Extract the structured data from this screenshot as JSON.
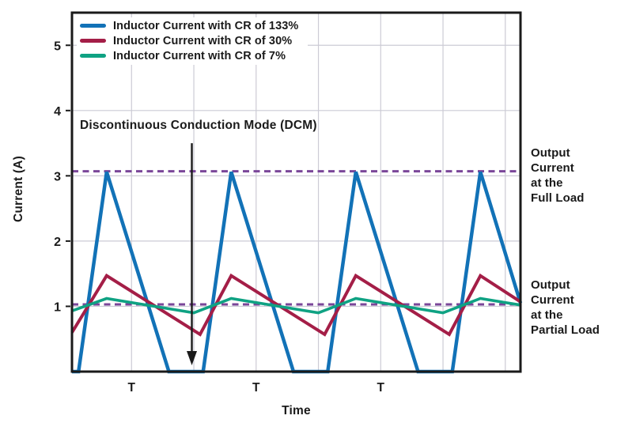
{
  "figure": {
    "background": "#ffffff",
    "text_color": "#1a1a1a"
  },
  "legend": {
    "items": [
      {
        "label": "Inductor Current with CR of 133%",
        "color": "#1272B7",
        "slug": "cr-133"
      },
      {
        "label": "Inductor Current with CR of 30%",
        "color": "#A41E47",
        "slug": "cr-30"
      },
      {
        "label": "Inductor Current with CR of 7%",
        "color": "#0FA283",
        "slug": "cr-7"
      }
    ]
  },
  "labels": {
    "full_load": "Output\nCurrent\nat the\nFull Load",
    "partial_load": "Output\nCurrent\nat the\nPartial Load"
  },
  "chart_data": {
    "type": "line",
    "title": "",
    "xlabel": "Time",
    "ylabel": "Current (A)",
    "ylim": [
      0,
      5.5
    ],
    "y_ticks": [
      1,
      2,
      3,
      4,
      5
    ],
    "x_ticks": [
      {
        "t": 1,
        "label": "T"
      },
      {
        "t": 2,
        "label": "T"
      },
      {
        "t": 3,
        "label": "T"
      }
    ],
    "xlim_t": [
      0.522,
      4.122
    ],
    "grid": {
      "vertical_t": [
        1,
        1.5,
        2,
        2.5,
        3,
        3.5,
        4
      ],
      "horizontal_v": [
        1,
        2,
        3,
        4,
        5
      ],
      "color": "#CCCBD5"
    },
    "reference_lines": [
      {
        "name": "output-current-full-load",
        "value": 3.07,
        "color": "#7A4699",
        "style": "dashed"
      },
      {
        "name": "output-current-partial-load",
        "value": 1.03,
        "color": "#7A4699",
        "style": "dashed"
      }
    ],
    "series": [
      {
        "name": "Inductor Current with CR of 133%",
        "slug": "cr-133",
        "color": "#1272B7",
        "width": 4.5,
        "points": [
          [
            0.522,
            0
          ],
          [
            0.575,
            0
          ],
          [
            0.8,
            3.06
          ],
          [
            1.3,
            0
          ],
          [
            1.575,
            0
          ],
          [
            1.8,
            3.06
          ],
          [
            2.3,
            0
          ],
          [
            2.575,
            0
          ],
          [
            2.8,
            3.06
          ],
          [
            3.3,
            0
          ],
          [
            3.575,
            0
          ],
          [
            3.8,
            3.06
          ],
          [
            4.122,
            1.05
          ]
        ]
      },
      {
        "name": "Inductor Current with CR of 30%",
        "slug": "cr-30",
        "color": "#A41E47",
        "width": 4,
        "points": [
          [
            0.522,
            0.6
          ],
          [
            0.8,
            1.47
          ],
          [
            1.55,
            0.57
          ],
          [
            1.8,
            1.47
          ],
          [
            2.55,
            0.57
          ],
          [
            2.8,
            1.47
          ],
          [
            3.55,
            0.57
          ],
          [
            3.8,
            1.47
          ],
          [
            4.122,
            1.07
          ]
        ]
      },
      {
        "name": "Inductor Current with CR of 7%",
        "slug": "cr-7",
        "color": "#0FA283",
        "width": 3.6,
        "points": [
          [
            0.522,
            0.93
          ],
          [
            0.8,
            1.12
          ],
          [
            1.5,
            0.9
          ],
          [
            1.8,
            1.12
          ],
          [
            2.5,
            0.9
          ],
          [
            2.8,
            1.12
          ],
          [
            3.5,
            0.9
          ],
          [
            3.8,
            1.12
          ],
          [
            4.122,
            1.02
          ]
        ]
      }
    ],
    "annotation": {
      "text": "Discontinuous Conduction Mode (DCM)",
      "arrow_t": 1.484,
      "arrow_from_v": 3.5,
      "arrow_to_v": 0.1
    }
  }
}
